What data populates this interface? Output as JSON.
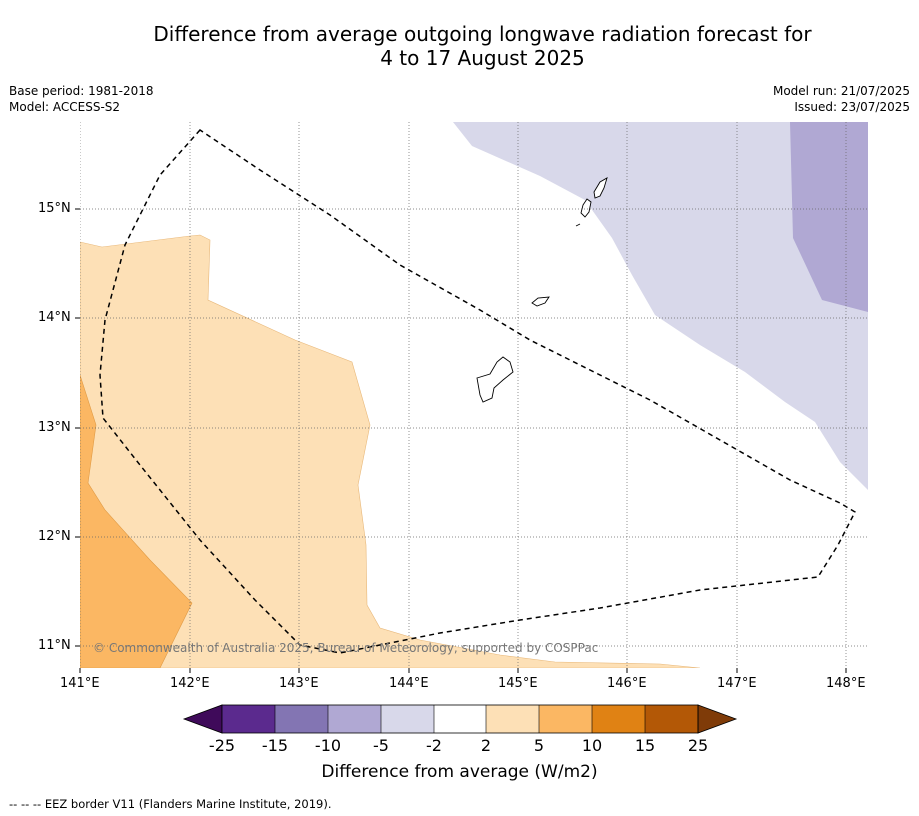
{
  "title_line1": "Difference from average outgoing longwave radiation forecast for",
  "title_line2": "4 to 17 August 2025",
  "meta_left": [
    "Base period: 1981-2018",
    "Model: ACCESS-S2"
  ],
  "meta_right": [
    "Model run: 21/07/2025",
    "Issued: 23/07/2025"
  ],
  "axes": {
    "lon_ticks": [
      "141°E",
      "142°E",
      "143°E",
      "144°E",
      "145°E",
      "146°E",
      "147°E",
      "148°E"
    ],
    "lat_ticks": [
      "15°N",
      "14°N",
      "13°N",
      "12°N",
      "11°N"
    ]
  },
  "copyright": "© Commonwealth of Australia 2025, Bureau of Meteorology, supported by COSPPac",
  "colorbar": {
    "title": "Difference from average (W/m2)",
    "labels": [
      "-25",
      "-15",
      "-10",
      "-5",
      "-2",
      "2",
      "5",
      "10",
      "15",
      "25"
    ],
    "colors": [
      "#3f0a5a",
      "#5b2a8e",
      "#8375b3",
      "#b0a8d3",
      "#d8d8ea",
      "#ffffff",
      "#fde0b6",
      "#fbb763",
      "#e08214",
      "#b35806",
      "#7f3b08"
    ]
  },
  "footnote": "-- -- -- EEZ border V11 (Flanders Marine Institute, 2019)."
}
